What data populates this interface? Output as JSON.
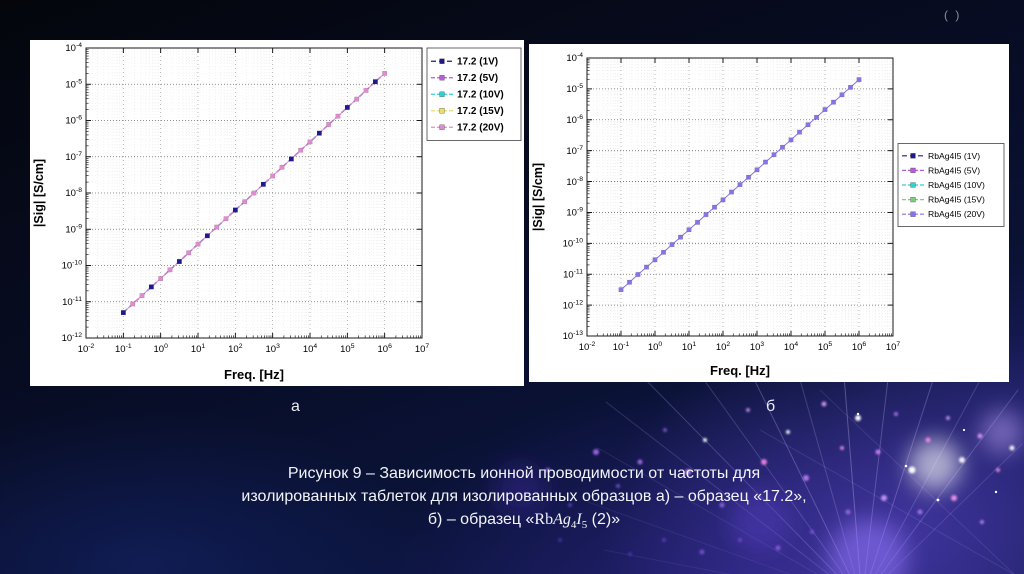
{
  "slide": {
    "artifact_top_right": "( )",
    "label_a": "а",
    "label_b": "б",
    "caption": {
      "line1": "Рисунок 9 – Зависимость ионной проводимости от частоты для",
      "line2": "изолированных таблеток для изолированных образцов а) – образец «17.2»,",
      "line3_prefix": "б) – образец «",
      "formula": {
        "rb": "Rb",
        "ag": "Ag",
        "sub4": "4",
        "i": "I",
        "sub5": "5"
      },
      "line3_suffix": " (2)»"
    }
  },
  "chart_data": [
    {
      "id": "a",
      "type": "scatter",
      "title": "",
      "xlabel": "Freq. [Hz]",
      "ylabel": "|Sig| [S/cm]",
      "x_exponent_range": [
        -2,
        7
      ],
      "y_exponent_range": [
        -12,
        -4
      ],
      "grid": true,
      "legend_position": "outside-right-top",
      "marker": "square",
      "series": [
        {
          "name": "17.2 (1V)",
          "color": "#1b1b8e",
          "dash": "5 3"
        },
        {
          "name": "17.2 (5V)",
          "color": "#b45fd9",
          "dash": "4 2"
        },
        {
          "name": "17.2 (10V)",
          "color": "#35cfcf",
          "dash": "4 2"
        },
        {
          "name": "17.2 (15V)",
          "color": "#e3e06e",
          "dash": "4 2"
        },
        {
          "name": "17.2 (20V)",
          "color": "#e18ad0",
          "dash": "4 2"
        }
      ],
      "note": "all five voltage series overlap on a single power-law line",
      "top_series": 4,
      "base_line_series": 0,
      "accent_series": 0,
      "accent_every": 3,
      "points_log10": [
        [
          -1.0,
          -11.3
        ],
        [
          -0.75,
          -11.06
        ],
        [
          -0.5,
          -10.83
        ],
        [
          -0.25,
          -10.59
        ],
        [
          0.0,
          -10.36
        ],
        [
          0.25,
          -10.12
        ],
        [
          0.5,
          -9.89
        ],
        [
          0.75,
          -9.65
        ],
        [
          1.0,
          -9.41
        ],
        [
          1.25,
          -9.18
        ],
        [
          1.5,
          -8.94
        ],
        [
          1.75,
          -8.71
        ],
        [
          2.0,
          -8.47
        ],
        [
          2.25,
          -8.24
        ],
        [
          2.5,
          -8.0
        ],
        [
          2.75,
          -7.76
        ],
        [
          3.0,
          -7.53
        ],
        [
          3.25,
          -7.29
        ],
        [
          3.5,
          -7.06
        ],
        [
          3.75,
          -6.82
        ],
        [
          4.0,
          -6.59
        ],
        [
          4.25,
          -6.35
        ],
        [
          4.5,
          -6.11
        ],
        [
          4.75,
          -5.88
        ],
        [
          5.0,
          -5.64
        ],
        [
          5.25,
          -5.41
        ],
        [
          5.5,
          -5.17
        ],
        [
          5.75,
          -4.93
        ],
        [
          6.0,
          -4.7
        ]
      ]
    },
    {
      "id": "b",
      "type": "scatter",
      "title": "",
      "xlabel": "Freq. [Hz]",
      "ylabel": "|Sig| [S/cm]",
      "x_exponent_range": [
        -2,
        7
      ],
      "y_exponent_range": [
        -13,
        -4
      ],
      "grid": true,
      "legend_position": "outside-right-middle",
      "marker": "square",
      "series": [
        {
          "name": "RbAg4I5 (1V)",
          "color": "#1b1b8e",
          "dash": "5 3"
        },
        {
          "name": "RbAg4I5 (5V)",
          "color": "#b45fd9",
          "dash": "4 2"
        },
        {
          "name": "RbAg4I5 (10V)",
          "color": "#35cfcf",
          "dash": "4 2"
        },
        {
          "name": "RbAg4I5 (15V)",
          "color": "#7ccf7c",
          "dash": "4 2"
        },
        {
          "name": "RbAg4I5 (20V)",
          "color": "#8673e8",
          "dash": "4 2"
        }
      ],
      "note": "all five voltage series overlap on a single power-law line",
      "top_series": 4,
      "base_line_series": null,
      "accent_series": null,
      "accent_every": 0,
      "points_log10": [
        [
          -1.0,
          -11.5
        ],
        [
          -0.75,
          -11.26
        ],
        [
          -0.5,
          -11.01
        ],
        [
          -0.25,
          -10.77
        ],
        [
          0.0,
          -10.53
        ],
        [
          0.25,
          -10.29
        ],
        [
          0.5,
          -10.04
        ],
        [
          0.75,
          -9.8
        ],
        [
          1.0,
          -9.56
        ],
        [
          1.25,
          -9.32
        ],
        [
          1.5,
          -9.07
        ],
        [
          1.75,
          -8.83
        ],
        [
          2.0,
          -8.59
        ],
        [
          2.25,
          -8.34
        ],
        [
          2.5,
          -8.1
        ],
        [
          2.75,
          -7.86
        ],
        [
          3.0,
          -7.62
        ],
        [
          3.25,
          -7.37
        ],
        [
          3.5,
          -7.13
        ],
        [
          3.75,
          -6.89
        ],
        [
          4.0,
          -6.65
        ],
        [
          4.25,
          -6.4
        ],
        [
          4.5,
          -6.16
        ],
        [
          4.75,
          -5.92
        ],
        [
          5.0,
          -5.67
        ],
        [
          5.25,
          -5.43
        ],
        [
          5.5,
          -5.19
        ],
        [
          5.75,
          -4.95
        ],
        [
          6.0,
          -4.7
        ]
      ]
    }
  ]
}
